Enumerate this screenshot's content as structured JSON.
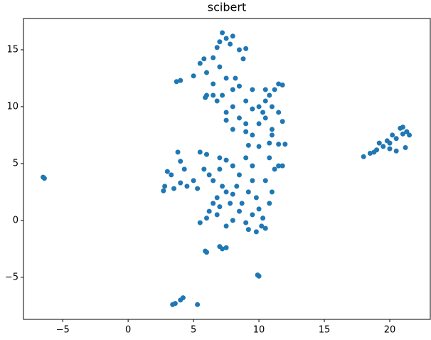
{
  "chart_data": {
    "type": "scatter",
    "title": "scibert",
    "color": "#1f77b4",
    "x": [
      -6.5,
      -6.4,
      18,
      18.5,
      19,
      19.5,
      20,
      20.5,
      21,
      21.3,
      20.8,
      20.2,
      19.8,
      21.2,
      20.5,
      19.2,
      21,
      21.5,
      20,
      18.8,
      3.4,
      3.6,
      4,
      4.2,
      5.3,
      9.9,
      10,
      5.9,
      6,
      7.2,
      7.5,
      7,
      7.2,
      7.5,
      7,
      7.8,
      8,
      6.8,
      8.5,
      9,
      8.8,
      6.5,
      5.8,
      5.5,
      5,
      4,
      3.7,
      6,
      6.5,
      7,
      7.5,
      8,
      7.2,
      6.5,
      6.8,
      6,
      5.9,
      8.5,
      9,
      8,
      7.5,
      8.5,
      9,
      9.5,
      10,
      10.5,
      10.8,
      11.2,
      11.8,
      11.5,
      10.5,
      10,
      11,
      11.5,
      11.8,
      9.5,
      9,
      8,
      7.5,
      9.2,
      10,
      10.8,
      11.5,
      12,
      11,
      10.5,
      9.5,
      8.2,
      10.3,
      11,
      3,
      2.8,
      3.5,
      4,
      4.5,
      5,
      5.3,
      2.7,
      3.3,
      3.8,
      4,
      4.3,
      5.5,
      6,
      5.8,
      6.2,
      6.5,
      7,
      7.2,
      7.5,
      6.8,
      6.5,
      6.2,
      6.8,
      7,
      7.8,
      8,
      8.3,
      8.5,
      8,
      7.5,
      7,
      9,
      9.5,
      9.5,
      9.2,
      9.8,
      10,
      9.5,
      9,
      9.2,
      9.8,
      10.2,
      10.5,
      10.3,
      10.8,
      11,
      10.5,
      11.2,
      11.5,
      11.8,
      10.8,
      8.5,
      8,
      5.5,
      6,
      7.5,
      8.7
    ],
    "values": [
      3.8,
      3.7,
      5.6,
      5.9,
      6.2,
      6.5,
      6.8,
      7.2,
      7.6,
      7.8,
      8.1,
      7.5,
      7,
      6.4,
      6.1,
      6.8,
      8.2,
      7.5,
      6.3,
      6,
      -7.4,
      -7.3,
      -7,
      -6.8,
      -7.4,
      -4.8,
      -4.9,
      -2.7,
      -2.8,
      -2.5,
      -2.4,
      -2.3,
      16.5,
      16,
      15.7,
      15.5,
      16.2,
      15.2,
      15,
      15.1,
      14.2,
      14.3,
      14.2,
      13.8,
      12.7,
      12.3,
      12.2,
      13,
      12,
      13.5,
      12.5,
      11.5,
      11,
      11,
      10.5,
      11,
      10.8,
      11.8,
      10.5,
      10,
      9.5,
      9,
      8.5,
      9.8,
      10,
      10.5,
      11,
      11.5,
      11.9,
      12,
      9,
      8.5,
      8,
      9.5,
      8.7,
      7.5,
      7.8,
      8,
      8.8,
      6.6,
      6.5,
      6.8,
      6.7,
      6.7,
      7.5,
      11.5,
      11.5,
      12.5,
      9.5,
      10,
      4.3,
      3,
      2.8,
      3.3,
      3,
      3.5,
      2.8,
      2.6,
      4,
      6,
      5.2,
      4.5,
      6,
      5.8,
      4.5,
      4,
      3.5,
      4.5,
      3,
      2.5,
      2,
      1.5,
      0.8,
      0.5,
      1.2,
      1.5,
      2.3,
      3,
      4,
      4.8,
      5.3,
      5.5,
      5.5,
      4.8,
      3.5,
      2.5,
      2,
      1,
      0.5,
      -0.2,
      -0.8,
      -1,
      -0.5,
      -0.7,
      0.2,
      1.5,
      2.5,
      3.5,
      4.5,
      4.8,
      4.8,
      5.5,
      0.8,
      0,
      -0.2,
      0.2,
      -0.5,
      1.5
    ],
    "xlim": [
      -8,
      23.1
    ],
    "ylim": [
      -8.7,
      17.75
    ],
    "xticks": [
      {
        "value": -5,
        "label": "−5"
      },
      0,
      5,
      10,
      15,
      20
    ],
    "yticks": [
      {
        "value": -5,
        "label": "−5"
      },
      0,
      5,
      10,
      15
    ]
  }
}
